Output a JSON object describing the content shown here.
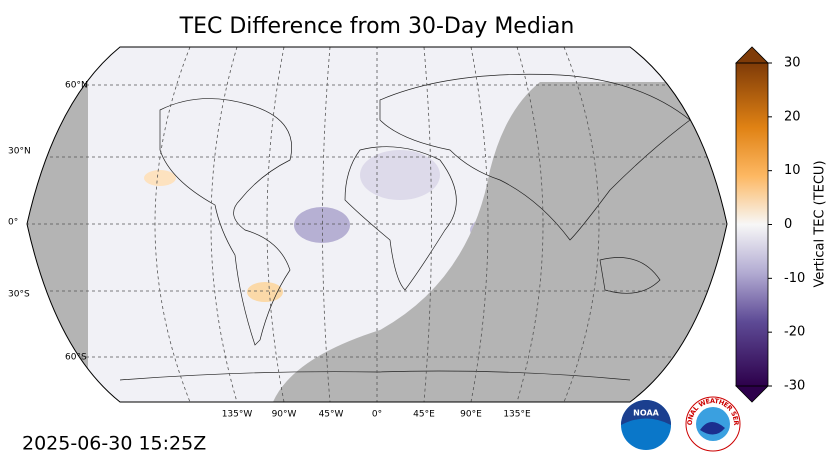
{
  "title": "TEC Difference from 30-Day Median",
  "map": {
    "lat_labels": [
      "60°N",
      "30°N",
      "0°",
      "30°S",
      "60°S"
    ],
    "lon_labels": [
      "135°W",
      "90°W",
      "45°W",
      "0°",
      "45°E",
      "90°E",
      "135°E"
    ]
  },
  "colorbar": {
    "label": "Vertical TEC (TECU)",
    "lim": [
      -30,
      30
    ],
    "ticks": [
      -30,
      -20,
      -10,
      0,
      10,
      20,
      30
    ]
  },
  "timestamp": "2025-06-30 15:25Z",
  "logos": {
    "noaa": "NOAA",
    "nws": "NATIONAL WEATHER SERVICE"
  }
}
